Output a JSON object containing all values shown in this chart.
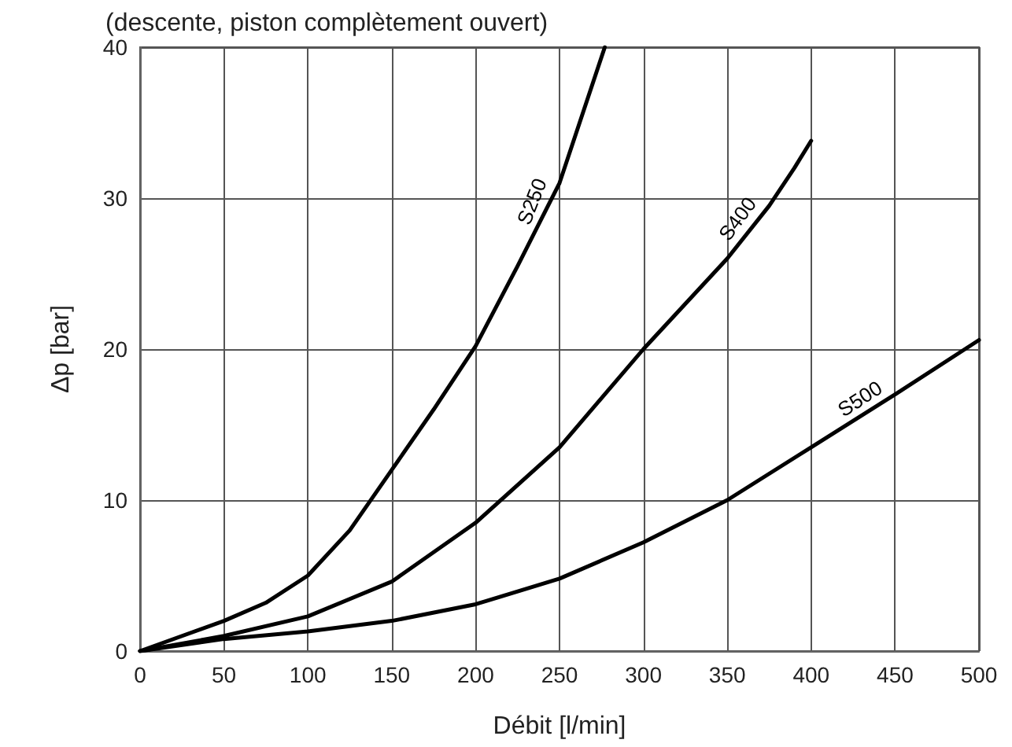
{
  "chart_data": {
    "type": "line",
    "title": "(descente, piston complètement ouvert)",
    "xlabel": "Débit [l/min]",
    "ylabel": "Δp [bar]",
    "xlim": [
      0,
      500
    ],
    "xticks": [
      0,
      50,
      100,
      150,
      200,
      250,
      300,
      350,
      400,
      450,
      500
    ],
    "ylim": [
      0,
      40
    ],
    "yticks": [
      0,
      10,
      20,
      30,
      40
    ],
    "grid": true,
    "legend": false,
    "marker": "none",
    "line_style": "solid",
    "series": [
      {
        "name": "S250",
        "color": "#000000",
        "x": [
          0,
          50,
          75,
          100,
          125,
          150,
          175,
          200,
          225,
          250,
          277
        ],
        "values": [
          0,
          2,
          3.2,
          5,
          8,
          12,
          16,
          20.2,
          25.5,
          31,
          40
        ]
      },
      {
        "name": "S400",
        "color": "#000000",
        "x": [
          0,
          50,
          100,
          150,
          200,
          250,
          300,
          350,
          375,
          390,
          400
        ],
        "values": [
          0,
          1,
          2.3,
          4.6,
          8.5,
          13.5,
          20,
          26,
          29.5,
          32,
          33.8
        ]
      },
      {
        "name": "S500",
        "color": "#000000",
        "x": [
          0,
          50,
          100,
          150,
          200,
          250,
          300,
          350,
          400,
          450,
          500
        ],
        "values": [
          0,
          0.8,
          1.3,
          2,
          3.1,
          4.8,
          7.2,
          10,
          13.5,
          17,
          20.6
        ]
      }
    ]
  }
}
